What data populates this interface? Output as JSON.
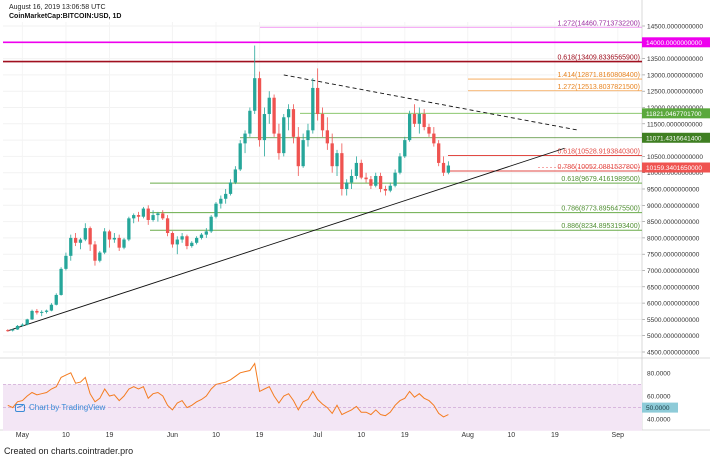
{
  "header": {
    "date": "August 16, 2019 13:06:58 UTC",
    "pair": "CoinMarketCap:BITCOIN:USD, 1D"
  },
  "footer": "Created on charts.cointrader.pro",
  "watermark": "Chart by TradingView",
  "colors": {
    "up": "#26a69a",
    "down": "#ef5350",
    "rsi": "#f47c20",
    "magenta": "#ee00ee",
    "darkred": "#a00f1f",
    "fib_orange": "#f4a14a",
    "fib_red": "#e24a44",
    "fib_green": "#5f9e3a"
  },
  "chart_data": {
    "type": "candlestick",
    "title": "CoinMarketCap:BITCOIN:USD, 1D",
    "price_axis": {
      "min": 4500,
      "max": 14500,
      "step": 500,
      "tick_labels": [
        "14500.0000000000",
        "14000.0000000000",
        "13500.0000000000",
        "13000.0000000000",
        "12500.0000000000",
        "12000.0000000000",
        "11500.0000000000",
        "11000.0000000000",
        "10500.0000000000",
        "10000.0000000000",
        "9500.0000000000",
        "9000.0000000000",
        "8500.0000000000",
        "8000.0000000000",
        "7500.0000000000",
        "7000.0000000000",
        "6500.0000000000",
        "6000.0000000000",
        "5500.0000000000",
        "5000.0000000000",
        "4500.0000000000"
      ]
    },
    "date_axis": {
      "start": "2019-04-27",
      "end": "2019-09-06",
      "ticks": [
        {
          "date": "2019-05-01",
          "label": "May"
        },
        {
          "date": "2019-05-10",
          "label": "10"
        },
        {
          "date": "2019-05-19",
          "label": "19"
        },
        {
          "date": "2019-06-01",
          "label": "Jun"
        },
        {
          "date": "2019-06-10",
          "label": "10"
        },
        {
          "date": "2019-06-19",
          "label": "19"
        },
        {
          "date": "2019-07-01",
          "label": "Jul"
        },
        {
          "date": "2019-07-10",
          "label": "10"
        },
        {
          "date": "2019-07-19",
          "label": "19"
        },
        {
          "date": "2019-08-01",
          "label": "Aug"
        },
        {
          "date": "2019-08-10",
          "label": "10"
        },
        {
          "date": "2019-08-19",
          "label": "19"
        },
        {
          "date": "2019-09-01",
          "label": "Sep"
        }
      ]
    },
    "candles_start": "2019-04-28",
    "candles": [
      [
        5170,
        5200,
        5120,
        5160
      ],
      [
        5160,
        5200,
        5130,
        5190
      ],
      [
        5190,
        5330,
        5180,
        5300
      ],
      [
        5300,
        5380,
        5280,
        5340
      ],
      [
        5340,
        5520,
        5320,
        5500
      ],
      [
        5500,
        5800,
        5480,
        5760
      ],
      [
        5760,
        5820,
        5650,
        5710
      ],
      [
        5710,
        5780,
        5600,
        5730
      ],
      [
        5730,
        5800,
        5680,
        5770
      ],
      [
        5770,
        6000,
        5750,
        5950
      ],
      [
        5950,
        6300,
        5930,
        6250
      ],
      [
        6250,
        7100,
        6230,
        7050
      ],
      [
        7050,
        7550,
        7000,
        7450
      ],
      [
        7450,
        8100,
        7300,
        8000
      ],
      [
        8000,
        8150,
        7750,
        7850
      ],
      [
        7850,
        8000,
        7650,
        7950
      ],
      [
        7950,
        8450,
        7900,
        8300
      ],
      [
        8300,
        8350,
        7600,
        7800
      ],
      [
        7800,
        7900,
        7150,
        7300
      ],
      [
        7300,
        7600,
        7250,
        7550
      ],
      [
        7550,
        8300,
        7500,
        8200
      ],
      [
        8200,
        8250,
        7700,
        7950
      ],
      [
        7950,
        8150,
        7850,
        8000
      ],
      [
        8000,
        8100,
        7600,
        7700
      ],
      [
        7700,
        8000,
        7650,
        7950
      ],
      [
        7950,
        8650,
        7900,
        8600
      ],
      [
        8600,
        8750,
        8450,
        8700
      ],
      [
        8700,
        8800,
        8500,
        8650
      ],
      [
        8650,
        8950,
        8600,
        8900
      ],
      [
        8900,
        9000,
        8400,
        8550
      ],
      [
        8550,
        8850,
        8500,
        8700
      ],
      [
        8700,
        8800,
        8500,
        8750
      ],
      [
        8750,
        8850,
        8550,
        8600
      ],
      [
        8600,
        8700,
        8050,
        8150
      ],
      [
        8150,
        8200,
        7700,
        7800
      ],
      [
        7800,
        8050,
        7500,
        7950
      ],
      [
        7950,
        8150,
        7850,
        8050
      ],
      [
        8050,
        8100,
        7650,
        7750
      ],
      [
        7750,
        7900,
        7700,
        7850
      ],
      [
        7850,
        8050,
        7800,
        8000
      ],
      [
        8000,
        8150,
        7950,
        8100
      ],
      [
        8100,
        8300,
        8000,
        8200
      ],
      [
        8200,
        8700,
        8150,
        8650
      ],
      [
        8650,
        9100,
        8600,
        9050
      ],
      [
        9050,
        9300,
        8900,
        9200
      ],
      [
        9200,
        9500,
        9050,
        9350
      ],
      [
        9350,
        9800,
        9300,
        9700
      ],
      [
        9700,
        10200,
        9650,
        10100
      ],
      [
        10100,
        11000,
        10050,
        10900
      ],
      [
        10900,
        11300,
        10600,
        11200
      ],
      [
        11200,
        12000,
        11100,
        11900
      ],
      [
        11900,
        13900,
        11800,
        12900
      ],
      [
        12900,
        13100,
        10800,
        11000
      ],
      [
        11000,
        12000,
        10500,
        11800
      ],
      [
        11800,
        12500,
        11500,
        12300
      ],
      [
        12300,
        12400,
        11100,
        11200
      ],
      [
        11200,
        11500,
        10400,
        10600
      ],
      [
        10600,
        11800,
        10500,
        11700
      ],
      [
        11700,
        12100,
        11300,
        11950
      ],
      [
        11950,
        12100,
        10900,
        11100
      ],
      [
        11100,
        11400,
        9900,
        10200
      ],
      [
        10200,
        11200,
        10150,
        11000
      ],
      [
        11000,
        11500,
        10800,
        11300
      ],
      [
        11300,
        12900,
        11200,
        12600
      ],
      [
        12600,
        13200,
        11600,
        11800
      ],
      [
        11800,
        12000,
        11100,
        11300
      ],
      [
        11300,
        11700,
        10700,
        10900
      ],
      [
        10900,
        11200,
        10000,
        10200
      ],
      [
        10200,
        10700,
        9900,
        10600
      ],
      [
        10600,
        10900,
        9300,
        9500
      ],
      [
        9500,
        9800,
        9300,
        9700
      ],
      [
        9700,
        10100,
        9500,
        9900
      ],
      [
        9900,
        10500,
        9800,
        10300
      ],
      [
        10300,
        10400,
        9800,
        9850
      ],
      [
        9850,
        10000,
        9700,
        9800
      ],
      [
        9800,
        9900,
        9500,
        9600
      ],
      [
        9600,
        10000,
        9550,
        9900
      ],
      [
        9900,
        10000,
        9400,
        9500
      ],
      [
        9500,
        9600,
        9300,
        9450
      ],
      [
        9450,
        9700,
        9400,
        9600
      ],
      [
        9600,
        10100,
        9550,
        10000
      ],
      [
        10000,
        10600,
        9950,
        10500
      ],
      [
        10500,
        11100,
        10450,
        11000
      ],
      [
        11000,
        11900,
        10950,
        11800
      ],
      [
        11800,
        12100,
        11400,
        11500
      ],
      [
        11500,
        12000,
        11200,
        11800
      ],
      [
        11800,
        11950,
        11300,
        11400
      ],
      [
        11400,
        11500,
        11100,
        11200
      ],
      [
        11200,
        11400,
        10800,
        10900
      ],
      [
        10900,
        11000,
        10200,
        10300
      ],
      [
        10300,
        10500,
        9900,
        10000
      ],
      [
        10000,
        10350,
        9950,
        10220
      ]
    ],
    "horizontal_lines": [
      {
        "label": "1.272(14460.7713732200)",
        "price": 14460.77,
        "style": "thin_magenta"
      },
      {
        "label": "14000.0000000000",
        "price": 14000,
        "style": "magenta"
      },
      {
        "label": "0.618(13409.8336565900)",
        "price": 13409.83,
        "style": "darkred"
      },
      {
        "label": "1.414(12871.8160808400)",
        "price": 12871.82,
        "style": "orange"
      },
      {
        "label": "1.272(12513.8037821500)",
        "price": 12513.8,
        "style": "orange"
      },
      {
        "label": "11821.0467701700",
        "price": 11821.05,
        "style": "green_tag"
      },
      {
        "label": "11071.4316641400",
        "price": 11071.43,
        "style": "darkgreen_tag"
      },
      {
        "label": "0.618(10528.9193840300)",
        "price": 10528.92,
        "style": "red"
      },
      {
        "label": "0.786(10052.0881537800)",
        "price": 10052.09,
        "style": "red"
      },
      {
        "label": "10159.3401650000",
        "price": 10159.34,
        "style": "price_tag"
      },
      {
        "label": "0.618(9679.4161989500)",
        "price": 9679.42,
        "style": "green"
      },
      {
        "label": "0.786(8773.8956475500)",
        "price": 8773.9,
        "style": "green"
      },
      {
        "label": "0.886(8234.8953193400)",
        "price": 8234.9,
        "style": "green"
      }
    ],
    "trendlines": [
      {
        "from": [
          "2019-04-28",
          5150
        ],
        "to": [
          "2019-08-21",
          10750
        ],
        "style": "solid"
      },
      {
        "from": [
          "2019-06-24",
          13000
        ],
        "to": [
          "2019-08-24",
          11300
        ],
        "style": "dashed"
      }
    ],
    "rsi": {
      "min": 35,
      "max": 85,
      "tick_labels": [
        "80.0000",
        "60.0000",
        "50.0000",
        "40.0000"
      ],
      "ticks": [
        80,
        60,
        50,
        40
      ],
      "band": [
        30,
        70
      ],
      "values": [
        52,
        50,
        55,
        56,
        60,
        63,
        61,
        62,
        63,
        66,
        68,
        76,
        78,
        80,
        71,
        72,
        76,
        62,
        55,
        58,
        66,
        60,
        61,
        56,
        60,
        66,
        68,
        66,
        68,
        58,
        62,
        63,
        60,
        52,
        48,
        54,
        56,
        50,
        52,
        55,
        57,
        60,
        66,
        70,
        71,
        72,
        74,
        77,
        80,
        81,
        82,
        88,
        64,
        66,
        68,
        60,
        54,
        60,
        62,
        56,
        48,
        55,
        57,
        64,
        57,
        53,
        50,
        45,
        52,
        44,
        46,
        48,
        51,
        46,
        46,
        44,
        48,
        44,
        43,
        46,
        52,
        56,
        58,
        64,
        59,
        62,
        58,
        56,
        52,
        45,
        42,
        44
      ]
    }
  }
}
